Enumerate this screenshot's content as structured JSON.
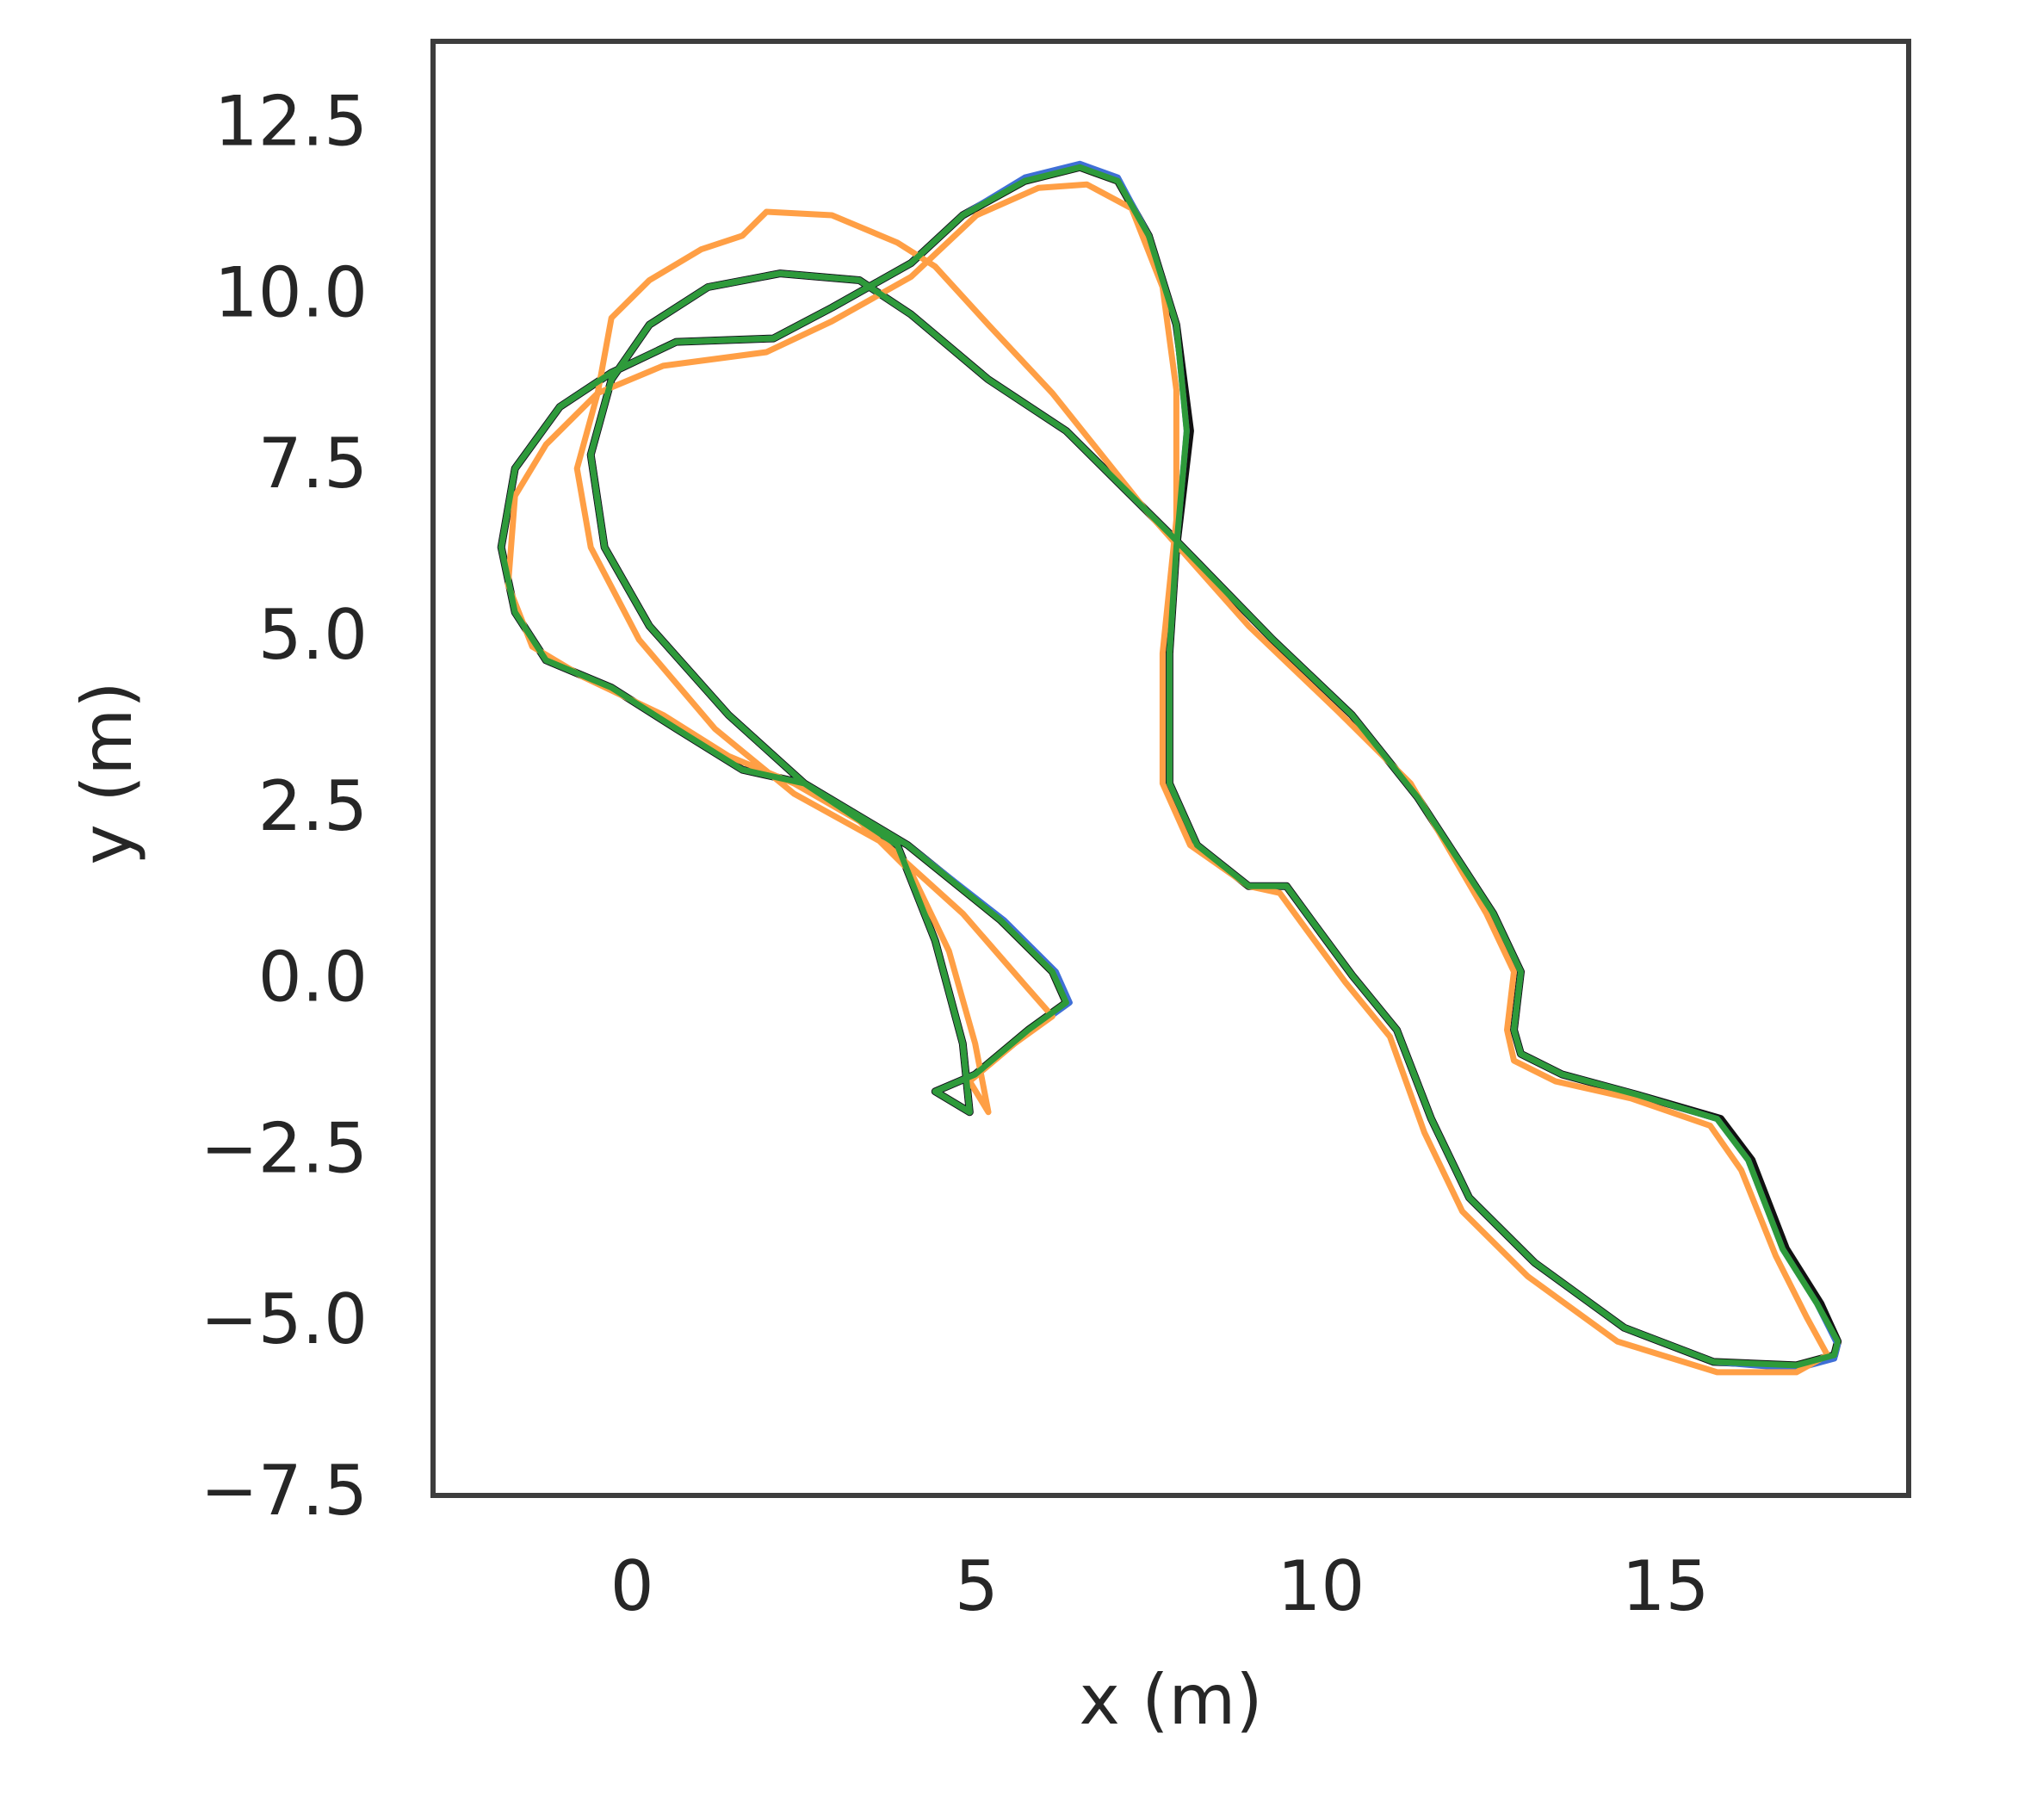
{
  "chart_data": {
    "type": "line",
    "x_label": "x (m)",
    "y_label": "y (m)",
    "xlim": [
      -2.89,
      18.53
    ],
    "ylim": [
      -7.5,
      13.74
    ],
    "xticks": [
      0,
      5,
      10,
      15
    ],
    "yticks": [
      12.5,
      {
        "value": 10,
        "label": "10.0"
      },
      7.5,
      {
        "value": 5,
        "label": "5.0"
      },
      2.5,
      {
        "value": 0,
        "label": "0.0"
      },
      {
        "value": -2.5,
        "label": "−2.5"
      },
      {
        "value": -5,
        "label": "−5.0"
      },
      {
        "value": -7.5,
        "label": "−7.5"
      }
    ],
    "grid": false,
    "series": [
      {
        "color": "#111111",
        "x": [
          4.9,
          4.8,
          4.4,
          3.85,
          2.5,
          1.6,
          0.64,
          -0.3,
          -1.25,
          -1.7,
          -1.9,
          -1.7,
          -1.05,
          -0.3,
          0.64,
          2.05,
          2.9,
          4.05,
          4.8,
          5.7,
          6.5,
          7.05,
          7.5,
          7.9,
          8.1,
          7.9,
          7.8,
          7.8,
          8.2,
          8.95,
          9.5,
          9.9,
          10.45,
          11.1,
          11.6,
          12.15,
          13.1,
          14.4,
          15.7,
          16.9,
          17.45,
          17.5,
          17.25,
          16.75,
          16.25,
          15.8,
          14.6,
          13.5,
          12.9,
          12.8,
          12.9,
          12.5,
          11.4,
          10.45,
          9.3,
          7.8,
          6.3,
          5.17,
          4.05,
          3.3,
          2.15,
          1.1,
          0.25,
          -0.3,
          -0.6,
          -0.4,
          0.25,
          1.4,
          2.5,
          4.0,
          5.35,
          6.1,
          6.3,
          5.75,
          4.98,
          4.4,
          4.9
        ],
        "values": [
          -1.9,
          -0.9,
          0.6,
          2.0,
          2.9,
          3.1,
          3.7,
          4.3,
          4.7,
          5.4,
          6.35,
          7.5,
          8.4,
          8.9,
          9.35,
          9.4,
          9.85,
          10.5,
          11.2,
          11.7,
          11.9,
          11.7,
          10.9,
          9.6,
          8.05,
          6.35,
          4.8,
          2.9,
          2.0,
          1.4,
          1.4,
          0.85,
          0.1,
          -0.7,
          -2.0,
          -3.15,
          -4.1,
          -5.05,
          -5.55,
          -5.6,
          -5.45,
          -5.25,
          -4.7,
          -3.9,
          -2.6,
          -2.0,
          -1.65,
          -1.35,
          -1.05,
          -0.7,
          0.15,
          1.0,
          2.7,
          3.9,
          5.0,
          6.55,
          8.05,
          8.8,
          9.75,
          10.25,
          10.35,
          10.15,
          9.6,
          8.8,
          7.7,
          6.35,
          5.2,
          3.9,
          2.9,
          2.0,
          0.9,
          0.15,
          -0.3,
          -0.7,
          -1.35,
          -1.6,
          -1.9
        ]
      },
      {
        "color": "#3f6fd6",
        "x": [
          4.9,
          4.8,
          4.4,
          3.85,
          2.5,
          1.6,
          0.64,
          -0.3,
          -1.25,
          -1.7,
          -1.9,
          -1.7,
          -1.05,
          -0.3,
          0.64,
          2.05,
          2.9,
          4.05,
          4.8,
          5.7,
          6.5,
          7.05,
          7.5,
          7.9,
          8.05,
          7.9,
          7.8,
          7.8,
          8.2,
          8.95,
          9.5,
          9.9,
          10.45,
          11.1,
          11.6,
          12.15,
          13.1,
          14.4,
          15.7,
          16.9,
          17.45,
          17.5,
          17.2,
          16.7,
          16.2,
          15.75,
          14.6,
          13.5,
          12.9,
          12.8,
          12.9,
          12.5,
          11.4,
          10.45,
          9.3,
          7.8,
          6.3,
          5.17,
          4.05,
          3.3,
          2.15,
          1.1,
          0.25,
          -0.3,
          -0.6,
          -0.4,
          0.25,
          1.4,
          2.5,
          4.0,
          5.4,
          6.15,
          6.35,
          5.8,
          4.98,
          4.4,
          4.9
        ],
        "values": [
          -1.9,
          -0.9,
          0.6,
          2.0,
          2.9,
          3.1,
          3.7,
          4.3,
          4.7,
          5.4,
          6.35,
          7.5,
          8.4,
          8.9,
          9.35,
          9.4,
          9.85,
          10.5,
          11.2,
          11.75,
          11.95,
          11.75,
          10.9,
          9.6,
          8.05,
          6.35,
          4.8,
          2.9,
          2.0,
          1.4,
          1.4,
          0.85,
          0.1,
          -0.7,
          -2.0,
          -3.15,
          -4.1,
          -5.05,
          -5.55,
          -5.65,
          -5.5,
          -5.3,
          -4.7,
          -3.9,
          -2.6,
          -2.0,
          -1.65,
          -1.35,
          -1.05,
          -0.7,
          0.15,
          1.0,
          2.7,
          3.9,
          5.0,
          6.55,
          8.05,
          8.8,
          9.75,
          10.25,
          10.35,
          10.15,
          9.6,
          8.8,
          7.7,
          6.35,
          5.2,
          3.9,
          2.9,
          2.0,
          0.9,
          0.15,
          -0.3,
          -0.7,
          -1.35,
          -1.6,
          -1.9
        ]
      },
      {
        "color": "#ff9f45",
        "x": [
          5.17,
          4.98,
          4.6,
          4.05,
          3.3,
          2.35,
          1.4,
          0.45,
          -0.7,
          -1.45,
          -1.8,
          -1.7,
          -1.25,
          -0.5,
          0.45,
          1.95,
          2.9,
          4.05,
          5.0,
          5.9,
          6.6,
          7.25,
          7.7,
          7.9,
          7.9,
          7.7,
          7.7,
          8.1,
          8.95,
          9.4,
          9.8,
          10.35,
          11.0,
          11.5,
          12.05,
          13.0,
          14.3,
          15.75,
          16.9,
          17.35,
          17.05,
          16.6,
          16.1,
          15.65,
          14.5,
          13.4,
          12.8,
          12.7,
          12.8,
          12.4,
          11.3,
          10.25,
          8.95,
          7.45,
          6.1,
          5.17,
          4.4,
          3.85,
          2.9,
          1.95,
          1.6,
          1.0,
          0.25,
          -0.3,
          -0.5,
          -0.8,
          -0.6,
          0.1,
          1.2,
          2.35,
          3.7,
          4.8,
          5.75,
          6.1,
          5.55,
          4.9,
          5.17
        ],
        "values": [
          -1.9,
          -0.9,
          0.45,
          1.6,
          2.35,
          2.9,
          3.3,
          3.9,
          4.45,
          4.9,
          5.8,
          7.1,
          7.85,
          8.6,
          9.0,
          9.2,
          9.65,
          10.3,
          11.2,
          11.6,
          11.65,
          11.3,
          10.15,
          8.65,
          6.75,
          4.8,
          2.9,
          2.0,
          1.4,
          1.3,
          0.75,
          0.0,
          -0.8,
          -2.2,
          -3.35,
          -4.3,
          -5.25,
          -5.7,
          -5.7,
          -5.45,
          -4.9,
          -4.0,
          -2.75,
          -2.1,
          -1.7,
          -1.45,
          -1.15,
          -0.7,
          0.15,
          1.0,
          2.9,
          3.95,
          5.2,
          6.9,
          8.6,
          9.6,
          10.45,
          10.8,
          11.2,
          11.25,
          10.9,
          10.7,
          10.25,
          9.7,
          8.6,
          7.5,
          6.35,
          5.0,
          3.7,
          2.75,
          2.0,
          1.0,
          -0.1,
          -0.5,
          -0.9,
          -1.45,
          -1.9
        ]
      },
      {
        "color": "#2e9a3a",
        "x": [
          4.9,
          4.8,
          4.4,
          3.85,
          2.5,
          1.6,
          0.64,
          -0.3,
          -1.25,
          -1.7,
          -1.9,
          -1.7,
          -1.05,
          -0.3,
          0.64,
          2.05,
          2.9,
          4.05,
          4.8,
          5.7,
          6.5,
          7.05,
          7.5,
          7.9,
          8.05,
          7.9,
          7.8,
          7.8,
          8.2,
          8.95,
          9.5,
          9.9,
          10.45,
          11.1,
          11.6,
          12.15,
          13.1,
          14.4,
          15.7,
          16.9,
          17.45,
          17.5,
          17.2,
          16.7,
          16.2,
          15.75,
          14.6,
          13.5,
          12.9,
          12.8,
          12.9,
          12.5,
          11.4,
          10.45,
          9.3,
          7.8,
          6.3,
          5.17,
          4.05,
          3.3,
          2.15,
          1.1,
          0.25,
          -0.3,
          -0.6,
          -0.4,
          0.25,
          1.4,
          2.5,
          4.0,
          5.35,
          6.1,
          6.3,
          5.75,
          4.98,
          4.4,
          4.9
        ],
        "values": [
          -1.9,
          -0.9,
          0.6,
          2.0,
          2.9,
          3.1,
          3.7,
          4.3,
          4.7,
          5.4,
          6.35,
          7.5,
          8.4,
          8.9,
          9.35,
          9.4,
          9.85,
          10.5,
          11.2,
          11.7,
          11.9,
          11.7,
          10.9,
          9.6,
          8.05,
          6.35,
          4.8,
          2.9,
          2.0,
          1.4,
          1.4,
          0.85,
          0.1,
          -0.7,
          -2.0,
          -3.15,
          -4.1,
          -5.05,
          -5.55,
          -5.6,
          -5.45,
          -5.25,
          -4.7,
          -3.9,
          -2.6,
          -2.0,
          -1.65,
          -1.35,
          -1.05,
          -0.7,
          0.15,
          1.0,
          2.7,
          3.9,
          5.0,
          6.55,
          8.05,
          8.8,
          9.75,
          10.25,
          10.35,
          10.15,
          9.6,
          8.8,
          7.7,
          6.35,
          5.2,
          3.9,
          2.9,
          2.0,
          0.9,
          0.15,
          -0.3,
          -0.7,
          -1.35,
          -1.6,
          -1.9
        ]
      }
    ]
  }
}
